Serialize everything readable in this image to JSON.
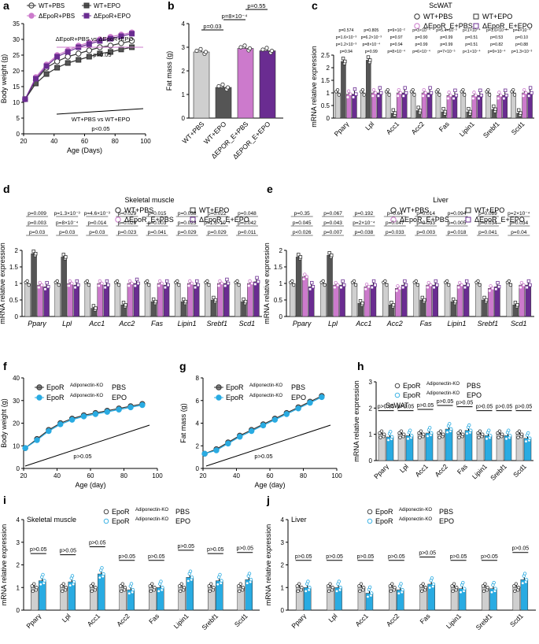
{
  "colors": {
    "wt": "#ffffff",
    "epo": "#555555",
    "ko_pbs": "#cc7acc",
    "ko_epo": "#6a2c91",
    "gray": "#bdbdbd",
    "blue": "#29abe2",
    "black": "#222222"
  },
  "chart_data": [
    {
      "panel": "a",
      "type": "line",
      "title": "",
      "xlabel": "Age (Days)",
      "ylabel": "Body weight (g)",
      "xlim": [
        20,
        100
      ],
      "ylim": [
        0,
        35
      ],
      "xticks": [
        20,
        40,
        60,
        80,
        100
      ],
      "yticks": [
        0,
        5,
        10,
        15,
        20,
        25,
        30,
        35
      ],
      "x": [
        21,
        28,
        35,
        42,
        49,
        56,
        63,
        70,
        77,
        84,
        91
      ],
      "series": [
        {
          "name": "WT+PBS",
          "values": [
            11,
            17,
            21,
            23,
            24.5,
            25.5,
            26.5,
            27.5,
            28,
            28.8,
            29.5
          ]
        },
        {
          "name": "WT+EPO",
          "values": [
            11,
            16,
            19,
            21,
            22.5,
            23.5,
            24.5,
            25.5,
            26,
            26.8,
            27.5
          ]
        },
        {
          "name": "ΔEpoR+PBS",
          "values": [
            11,
            18,
            22,
            25,
            26.5,
            28,
            29,
            30,
            30.8,
            31.5,
            32.2
          ]
        },
        {
          "name": "ΔEpoR+EPO",
          "values": [
            11,
            17.5,
            21.5,
            24.5,
            26,
            27.5,
            28.5,
            29.5,
            30.2,
            31,
            31.8
          ]
        }
      ],
      "legend": [
        "WT+PBS",
        "WT+EPO",
        "ΔEpoR+PBS",
        "ΔEpoR+EPO"
      ],
      "annotations": [
        "ΔEpoR+PBS vs ΔEpoR+EPO",
        "p>0.05",
        "WT+PBS vs WT+EPO",
        "p<0.05"
      ]
    },
    {
      "panel": "b",
      "type": "bar",
      "title": "",
      "ylabel": "Fat mass (g)",
      "ylim": [
        0,
        4
      ],
      "yticks": [
        0,
        1,
        2,
        3,
        4
      ],
      "categories": [
        "WT+PBS",
        "WT+EPO",
        "ΔEPOR_E+PBS",
        "ΔEPOR_E+EPO"
      ],
      "values": [
        2.8,
        1.3,
        2.95,
        2.85
      ],
      "pvalues": [
        "p=2×10⁻³",
        "p=0.55",
        "p=8×10⁻⁴",
        "p=0.03"
      ]
    },
    {
      "panel": "c",
      "type": "bar",
      "title": "ScWAT",
      "ylabel": "mRNA relative expression",
      "ylim": [
        0,
        2.5
      ],
      "yticks": [
        0,
        0.5,
        1.0,
        1.5,
        2.0,
        2.5
      ],
      "categories": [
        "Pparγ",
        "Lpl",
        "Acc1",
        "Acc2",
        "Fas",
        "Lipin1",
        "Srebf1",
        "Scd1"
      ],
      "series": [
        {
          "name": "WT+PBS",
          "values": [
            1,
            1,
            1,
            1,
            1,
            1,
            1,
            1
          ]
        },
        {
          "name": "WT+EPO",
          "values": [
            2.25,
            2.3,
            0.2,
            0.3,
            0.25,
            0.25,
            0.35,
            0.2
          ]
        },
        {
          "name": "ΔEpoR_E+PBS",
          "values": [
            0.95,
            1.0,
            1.0,
            1.0,
            0.9,
            0.9,
            0.9,
            1.0
          ]
        },
        {
          "name": "ΔEpoR_E+EPO",
          "values": [
            0.95,
            1.0,
            1.0,
            1.0,
            0.9,
            0.9,
            0.9,
            1.0
          ]
        }
      ],
      "legend": [
        "WT+PBS",
        "WT+EPO",
        "ΔEpoR_E+PBS",
        "ΔEpoR_E+EPO"
      ],
      "pvalues": [
        [
          "p=0.574",
          "p=1.6×10⁻³",
          "p=1.2×10⁻³",
          "p=0.94"
        ],
        [
          "p=0.805",
          "p=6.2×10⁻³",
          "p=8×10⁻⁴",
          "p=0.99"
        ],
        [
          "p=9×10⁻²",
          "p=0.97",
          "p=0.94",
          "p=8×10⁻⁴"
        ],
        [
          "p=3×10⁻⁴",
          "p=0.90",
          "p=0.99",
          "p=6×10⁻⁴"
        ],
        [
          "p=5.4×10⁻³",
          "p=0.99",
          "p=0.99",
          "p=7×10⁻⁵"
        ],
        [
          "p<1×10⁻⁴",
          "p=0.51",
          "p=0.51",
          "p<1×10⁻⁴"
        ],
        [
          "p=1.6×10⁻³",
          "p=0.53",
          "p=0.82",
          "p=9×10⁻⁴"
        ],
        [
          "p=4×10⁻⁴",
          "p=0.10",
          "p=0.88",
          "p=1.3×10⁻³"
        ]
      ]
    },
    {
      "panel": "d",
      "type": "bar",
      "title": "Skeletal muscle",
      "ylabel": "mRNA relative expression",
      "ylim": [
        0,
        2.0
      ],
      "yticks": [
        0,
        0.5,
        1.0,
        1.5,
        2.0
      ],
      "categories": [
        "Pparγ",
        "Lpl",
        "Acc1",
        "Acc2",
        "Fas",
        "Lipin1",
        "Srebf1",
        "Scd1"
      ],
      "series": [
        {
          "name": "WT+PBS",
          "values": [
            1,
            1,
            1,
            1,
            1,
            1,
            1,
            1
          ]
        },
        {
          "name": "WT+EPO",
          "values": [
            1.9,
            1.8,
            0.25,
            0.35,
            0.45,
            0.45,
            0.5,
            0.45
          ]
        },
        {
          "name": "ΔEpoR_E+PBS",
          "values": [
            0.95,
            1.0,
            1.0,
            1.0,
            1.0,
            1.0,
            1.0,
            1.0
          ]
        },
        {
          "name": "ΔEpoR_E+EPO",
          "values": [
            0.9,
            0.95,
            0.95,
            1.0,
            0.95,
            0.95,
            1.0,
            1.05
          ]
        }
      ],
      "legend": [
        "WT+PBS",
        "WT+EPO",
        "ΔEpoR_E+PBS",
        "ΔEpoR_E+EPO"
      ],
      "pvalues": [
        [
          "p=0.009",
          "p=0.003",
          "p=0.03"
        ],
        [
          "p=1.3×10⁻³",
          "p=8×10⁻⁴",
          "p=0.03"
        ],
        [
          "p=4.6×10⁻³",
          "p=0.014",
          "p=0.03"
        ],
        [
          "p=0.029",
          "p=0.029",
          "p=0.023"
        ],
        [
          "p=0.015",
          "p=0.003",
          "p=0.041"
        ],
        [
          "p=0.038",
          "p=0.023",
          "p=0.029"
        ],
        [
          "p=0.022",
          "p=1.6×10⁻³",
          "p=0.029"
        ],
        [
          "p=0.048",
          "p=0.042",
          "p=0.011"
        ]
      ]
    },
    {
      "panel": "e",
      "type": "bar",
      "title": "Liver",
      "ylabel": "mRNA relative expression",
      "ylim": [
        0,
        2.0
      ],
      "yticks": [
        0,
        0.5,
        1.0,
        1.5,
        2.0
      ],
      "categories": [
        "Pparγ",
        "Lpl",
        "Acc1",
        "Acc2",
        "Fas",
        "Lipin1",
        "Srebf1",
        "Scd1"
      ],
      "series": [
        {
          "name": "WT+PBS",
          "values": [
            1,
            1,
            1,
            1,
            1,
            1,
            1,
            1
          ]
        },
        {
          "name": "WT+EPO",
          "values": [
            1.8,
            1.85,
            0.4,
            0.35,
            0.5,
            0.45,
            0.5,
            0.35
          ]
        },
        {
          "name": "ΔEpoR_E+PBS",
          "values": [
            1.2,
            0.95,
            0.9,
            0.85,
            0.95,
            0.95,
            0.85,
            0.95
          ]
        },
        {
          "name": "ΔEpoR_E+EPO",
          "values": [
            0.9,
            0.95,
            0.95,
            0.95,
            0.95,
            0.95,
            0.9,
            0.95
          ]
        }
      ],
      "legend": [
        "WT+PBS",
        "WT+EPO",
        "ΔEpoR_E+PBS",
        "ΔEpoR_E+EPO"
      ],
      "pvalues": [
        [
          "p=0.35",
          "p=0.045",
          "p<0.026"
        ],
        [
          "p=0.067",
          "p=0.043",
          "p=0.007"
        ],
        [
          "p=0.192",
          "p=2×10⁻⁴",
          "p=0.038"
        ],
        [
          "p=0.64",
          "p=0.047",
          "p=0.033"
        ],
        [
          "p=0.014",
          "p=0.033",
          "p=0.003"
        ],
        [
          "p=0.094",
          "p=0.005",
          "p=0.018"
        ],
        [
          "p=0.089",
          "p=0.034",
          "p=0.041"
        ],
        [
          "p=2×10⁻⁴",
          "p=0.034",
          "p=0.04"
        ]
      ]
    },
    {
      "panel": "f",
      "type": "line",
      "xlabel": "Age (day)",
      "ylabel": "Body weight (g)",
      "xlim": [
        20,
        100
      ],
      "ylim": [
        0,
        40
      ],
      "xticks": [
        20,
        40,
        60,
        80,
        100
      ],
      "yticks": [
        0,
        10,
        20,
        30,
        40
      ],
      "x": [
        21,
        28,
        35,
        42,
        49,
        56,
        63,
        70,
        77,
        84,
        91
      ],
      "series": [
        {
          "name": "EpoR^Adiponectin-KO PBS",
          "values": [
            9,
            13,
            17,
            20,
            22,
            23.5,
            24.5,
            25.5,
            26.5,
            27.5,
            28.5
          ]
        },
        {
          "name": "EpoR^Adiponectin-KO EPO",
          "values": [
            9,
            12.5,
            16.5,
            19.5,
            21.5,
            23,
            24,
            25,
            26,
            27,
            28
          ]
        }
      ],
      "legend": [
        "EpoR",
        "Adiponectin-KO",
        "PBS",
        "EPO"
      ],
      "annotations": [
        "p>0.05"
      ]
    },
    {
      "panel": "g",
      "type": "line",
      "xlabel": "Age (day)",
      "ylabel": "Fat mass (g)",
      "xlim": [
        20,
        100
      ],
      "ylim": [
        0,
        8
      ],
      "xticks": [
        20,
        40,
        60,
        80,
        100
      ],
      "yticks": [
        0,
        2,
        4,
        6,
        8
      ],
      "x": [
        21,
        28,
        35,
        42,
        49,
        56,
        63,
        70,
        77,
        84,
        91
      ],
      "series": [
        {
          "name": "EpoR^Adiponectin-KO PBS",
          "values": [
            1.3,
            1.7,
            2.3,
            2.9,
            3.4,
            3.9,
            4.4,
            4.9,
            5.4,
            5.9,
            6.4
          ]
        },
        {
          "name": "EpoR^Adiponectin-KO EPO",
          "values": [
            1.3,
            1.6,
            2.2,
            2.8,
            3.3,
            3.8,
            4.3,
            4.8,
            5.3,
            5.8,
            6.3
          ]
        }
      ],
      "legend": [
        "EpoR",
        "Adiponectin-KO",
        "PBS",
        "EPO"
      ],
      "annotations": [
        "p>0.05"
      ]
    },
    {
      "panel": "h",
      "type": "bar",
      "title": "ScWAT",
      "ylabel": "mRNA relative expression",
      "ylim": [
        0,
        3
      ],
      "yticks": [
        0,
        1,
        2,
        3
      ],
      "categories": [
        "Pparγ",
        "Lpl",
        "Acc1",
        "Acc2",
        "Fas",
        "Lipin1",
        "Srebf1",
        "Scd1"
      ],
      "series": [
        {
          "name": "PBS",
          "values": [
            1,
            1,
            1,
            1,
            1,
            1,
            1,
            1
          ]
        },
        {
          "name": "EPO",
          "values": [
            0.9,
            0.95,
            1.05,
            1.2,
            1.15,
            0.95,
            0.95,
            0.85
          ]
        }
      ],
      "legend": [
        "EpoR",
        "Adiponectin-KO",
        "PBS",
        "EPO"
      ],
      "pvalues": [
        "p>0.05",
        "p>0.05",
        "p>0.05",
        "p>0.05",
        "p>0.05",
        "p>0.05",
        "p>0.05",
        "p>0.05"
      ]
    },
    {
      "panel": "i",
      "type": "bar",
      "title": "Skeletal muscle",
      "ylabel": "mRNA relative expression",
      "ylim": [
        0,
        4
      ],
      "yticks": [
        0,
        1,
        2,
        3,
        4
      ],
      "categories": [
        "Pparγ",
        "Lpl",
        "Acc1",
        "Acc2",
        "Fas",
        "Lipin1",
        "Srebf1",
        "Scd1"
      ],
      "series": [
        {
          "name": "PBS",
          "values": [
            1,
            1,
            1,
            1,
            1,
            1,
            1,
            1
          ]
        },
        {
          "name": "EPO",
          "values": [
            1.3,
            1.25,
            1.6,
            0.9,
            1.0,
            1.45,
            1.3,
            1.35
          ]
        }
      ],
      "legend": [
        "EpoR",
        "Adiponectin-KO",
        "PBS",
        "EPO"
      ],
      "pvalues": [
        "p>0.05",
        "p>0.05",
        "p>0.05",
        "p>0.05",
        "p>0.05",
        "p>0.05",
        "p>0.05",
        "p>0.05"
      ]
    },
    {
      "panel": "j",
      "type": "bar",
      "title": "Liver",
      "ylabel": "mRNA relative expression",
      "ylim": [
        0,
        4
      ],
      "yticks": [
        0,
        1,
        2,
        3,
        4
      ],
      "categories": [
        "Pparγ",
        "Lpl",
        "Acc1",
        "Acc2",
        "Fas",
        "Lipin1",
        "Srebf1",
        "Scd1"
      ],
      "series": [
        {
          "name": "PBS",
          "values": [
            1,
            1,
            1,
            1,
            1,
            1,
            1,
            1
          ]
        },
        {
          "name": "EPO",
          "values": [
            1.0,
            1.0,
            0.75,
            0.9,
            1.15,
            0.95,
            0.95,
            1.35
          ]
        }
      ],
      "legend": [
        "EpoR",
        "Adiponectin-KO",
        "PBS",
        "EPO"
      ],
      "pvalues": [
        "p>0.05",
        "p>0.05",
        "p>0.05",
        "p>0.05",
        "p>0.05",
        "p>0.05",
        "p>0.05",
        "p>0.05"
      ]
    }
  ]
}
